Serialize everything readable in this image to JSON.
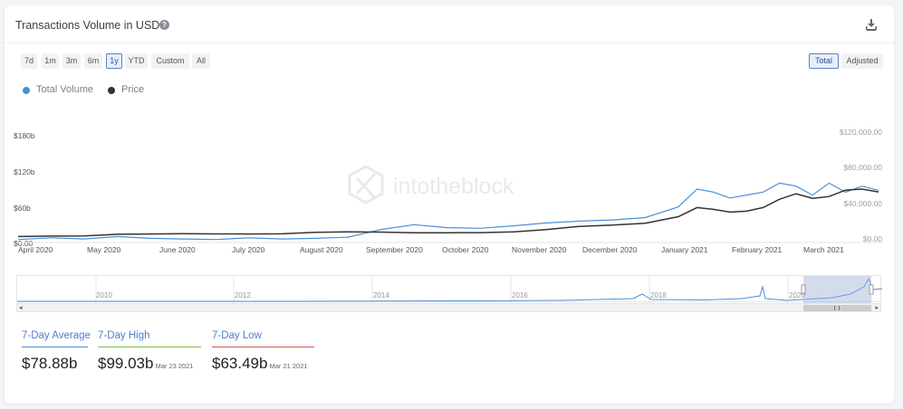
{
  "header": {
    "title": "Transactions Volume in USD",
    "help_icon": "?",
    "download_icon": "download-icon"
  },
  "range_buttons": [
    "7d",
    "1m",
    "3m",
    "6m",
    "1y",
    "YTD",
    "Custom",
    "All"
  ],
  "active_range": "1y",
  "mode_buttons": [
    "Total",
    "Adjusted"
  ],
  "active_mode": "Total",
  "legend": [
    {
      "name": "Total Volume",
      "color": "#4a90d9"
    },
    {
      "name": "Price",
      "color": "#333333"
    }
  ],
  "watermark": "intotheblock",
  "chart_data": {
    "type": "line",
    "left_axis_ticks": [
      "$180b",
      "$120b",
      "$60b",
      "$0.00"
    ],
    "left_axis_values": [
      180,
      120,
      60,
      0
    ],
    "right_axis_ticks": [
      "$120,000.00",
      "$80,000.00",
      "$40,000.00",
      "$0.00"
    ],
    "right_axis_values": [
      120000,
      80000,
      40000,
      0
    ],
    "x_tick_labels": [
      "April 2020",
      "May 2020",
      "June 2020",
      "July 2020",
      "August 2020",
      "September 2020",
      "October 2020",
      "November 2020",
      "December 2020",
      "January 2021",
      "February 2021",
      "March 2021"
    ],
    "x_range": [
      "2020-03-25",
      "2021-03-25"
    ],
    "series": [
      {
        "name": "Total Volume",
        "axis": "left",
        "color": "#4a90d9",
        "x": [
          "2020-03-25",
          "2020-04-08",
          "2020-04-22",
          "2020-05-06",
          "2020-05-20",
          "2020-06-03",
          "2020-06-17",
          "2020-07-01",
          "2020-07-15",
          "2020-07-29",
          "2020-08-12",
          "2020-08-26",
          "2020-09-09",
          "2020-09-23",
          "2020-10-07",
          "2020-10-21",
          "2020-11-04",
          "2020-11-18",
          "2020-12-02",
          "2020-12-16",
          "2020-12-30",
          "2021-01-07",
          "2021-01-14",
          "2021-01-21",
          "2021-01-28",
          "2021-02-04",
          "2021-02-11",
          "2021-02-18",
          "2021-02-25",
          "2021-03-04",
          "2021-03-11",
          "2021-03-18",
          "2021-03-25"
        ],
        "values": [
          5,
          8,
          6,
          10,
          7,
          6,
          5,
          8,
          6,
          7,
          9,
          22,
          30,
          25,
          24,
          28,
          33,
          36,
          38,
          42,
          60,
          90,
          85,
          75,
          80,
          85,
          100,
          95,
          80,
          100,
          85,
          95,
          88
        ]
      },
      {
        "name": "Price",
        "axis": "right",
        "color": "#333333",
        "x": [
          "2020-03-25",
          "2020-04-08",
          "2020-04-22",
          "2020-05-06",
          "2020-05-20",
          "2020-06-03",
          "2020-06-17",
          "2020-07-01",
          "2020-07-15",
          "2020-07-29",
          "2020-08-12",
          "2020-08-26",
          "2020-09-09",
          "2020-09-23",
          "2020-10-07",
          "2020-10-21",
          "2020-11-04",
          "2020-11-18",
          "2020-12-02",
          "2020-12-16",
          "2020-12-30",
          "2021-01-07",
          "2021-01-14",
          "2021-01-21",
          "2021-01-28",
          "2021-02-04",
          "2021-02-11",
          "2021-02-18",
          "2021-02-25",
          "2021-03-04",
          "2021-03-11",
          "2021-03-18",
          "2021-03-25"
        ],
        "values": [
          6500,
          7000,
          7200,
          9000,
          9200,
          9500,
          9300,
          9200,
          9400,
          11000,
          11600,
          11300,
          10500,
          10600,
          10700,
          11500,
          14000,
          17500,
          19000,
          21000,
          28000,
          38000,
          36000,
          33000,
          34000,
          38000,
          47000,
          53000,
          48000,
          50000,
          57000,
          58000,
          55000
        ]
      }
    ],
    "navigator_ticks": [
      "2010",
      "2012",
      "2014",
      "2016",
      "2018",
      "2020"
    ]
  },
  "stats": [
    {
      "label": "7-Day Average",
      "value": "$78.88b",
      "date": "",
      "color": "#4a90d9"
    },
    {
      "label": "7-Day High",
      "value": "$99.03b",
      "date": "Mar 23 2021",
      "color": "#7ec242"
    },
    {
      "label": "7-Day Low",
      "value": "$63.49b",
      "date": "Mar 21 2021",
      "color": "#d9534f"
    }
  ]
}
